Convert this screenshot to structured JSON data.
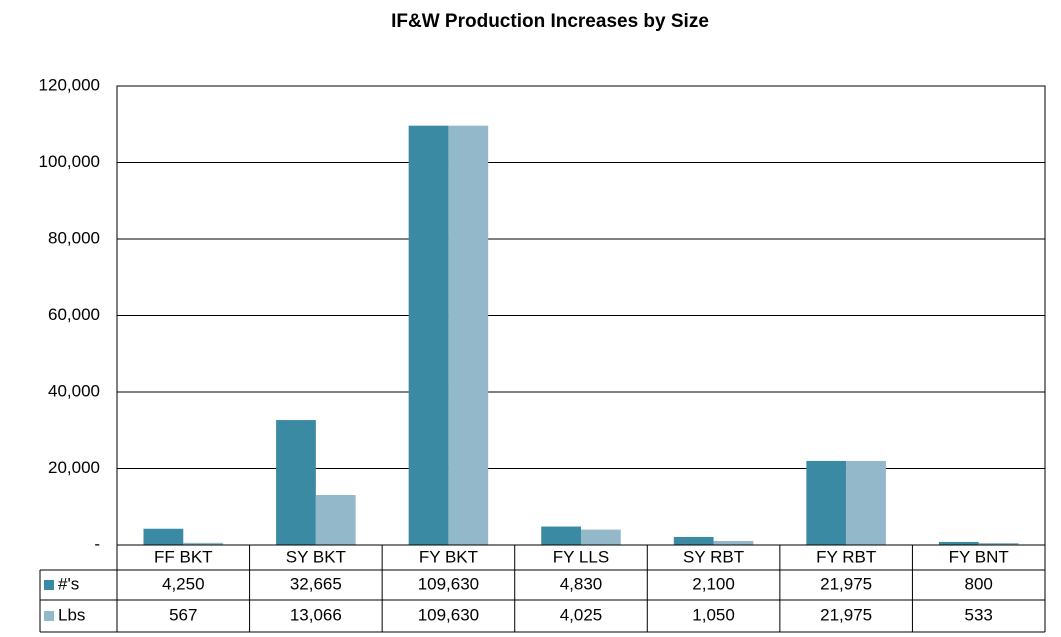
{
  "chart_data": {
    "type": "bar",
    "title": "IF&W Production Increases by Size",
    "categories": [
      "FF BKT",
      "SY BKT",
      "FY BKT",
      "FY LLS",
      "SY RBT",
      "FY RBT",
      "FY BNT"
    ],
    "series": [
      {
        "name": "#'s",
        "color": "#3b8aa3",
        "values": [
          4250,
          32665,
          109630,
          4830,
          2100,
          21975,
          800
        ],
        "value_labels": [
          "4,250",
          "32,665",
          "109,630",
          "4,830",
          "2,100",
          "21,975",
          "800"
        ]
      },
      {
        "name": "Lbs",
        "color": "#93b8c9",
        "values": [
          567,
          13066,
          109630,
          4025,
          1050,
          21975,
          533
        ],
        "value_labels": [
          "567",
          "13,066",
          "109,630",
          "4,025",
          "1,050",
          "21,975",
          "533"
        ]
      }
    ],
    "ylim": [
      0,
      120000
    ],
    "yticks": [
      {
        "value": 0,
        "label": "-"
      },
      {
        "value": 20000,
        "label": "20,000"
      },
      {
        "value": 40000,
        "label": "40,000"
      },
      {
        "value": 60000,
        "label": "60,000"
      },
      {
        "value": 80000,
        "label": "80,000"
      },
      {
        "value": 100000,
        "label": "100,000"
      },
      {
        "value": 120000,
        "label": "120,000"
      }
    ],
    "grid": true
  }
}
